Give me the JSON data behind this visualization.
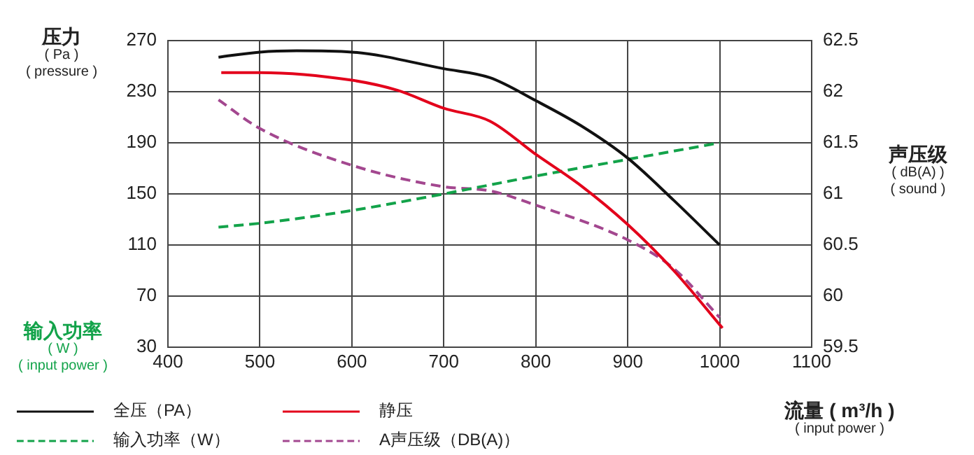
{
  "chart_data": {
    "type": "line",
    "ylabel": "压力\n( Pa )\n( pressure )",
    "y2label": "声压级\n( dB(A) )\n( sound )",
    "xlabel": "流量 ( m³/h )\n( input power )",
    "annotations": [
      "输入功率\n( W )\n( input power )"
    ],
    "xlim": [
      400,
      1100
    ],
    "xticks": [
      400,
      500,
      600,
      700,
      800,
      900,
      1000,
      1100
    ],
    "ylim": [
      30,
      270
    ],
    "yticks": [
      30,
      70,
      110,
      150,
      190,
      230,
      270
    ],
    "y2lim": [
      59.5,
      62.5
    ],
    "y2ticks": [
      59.5,
      60,
      60.5,
      61,
      61.5,
      62,
      62.5
    ],
    "grid": true,
    "legend": "bottom",
    "marker": "none",
    "series": [
      {
        "name": "全压（PA）",
        "color": "#111111",
        "line_style": "solid",
        "x": [
          455,
          500,
          540,
          600,
          700,
          750,
          800,
          850,
          900,
          950,
          1000
        ],
        "values": [
          257,
          261,
          262,
          261,
          248,
          241,
          223,
          203,
          178,
          145,
          110
        ]
      },
      {
        "name": "静压",
        "color": "#e3001b",
        "line_style": "solid",
        "x": [
          458,
          500,
          600,
          650,
          700,
          750,
          800,
          850,
          900,
          950,
          1003
        ],
        "values": [
          245,
          245,
          239,
          231,
          217,
          207,
          181,
          156,
          126,
          90,
          45
        ]
      },
      {
        "name": "输入功率（W）",
        "color": "#13a34a",
        "line_style": "dashed",
        "x": [
          455,
          500,
          600,
          700,
          800,
          900,
          1000
        ],
        "values": [
          124,
          127,
          137,
          150,
          164,
          177,
          190
        ]
      },
      {
        "name": "A声压级（DB(A)）",
        "color": "#a3478f",
        "line_style": "dashed",
        "axis": "y2",
        "x": [
          455,
          500,
          600,
          700,
          750,
          800,
          900,
          950,
          1000
        ],
        "values": [
          61.92,
          61.64,
          61.28,
          61.07,
          61.03,
          60.89,
          60.55,
          60.27,
          59.79
        ]
      }
    ]
  }
}
